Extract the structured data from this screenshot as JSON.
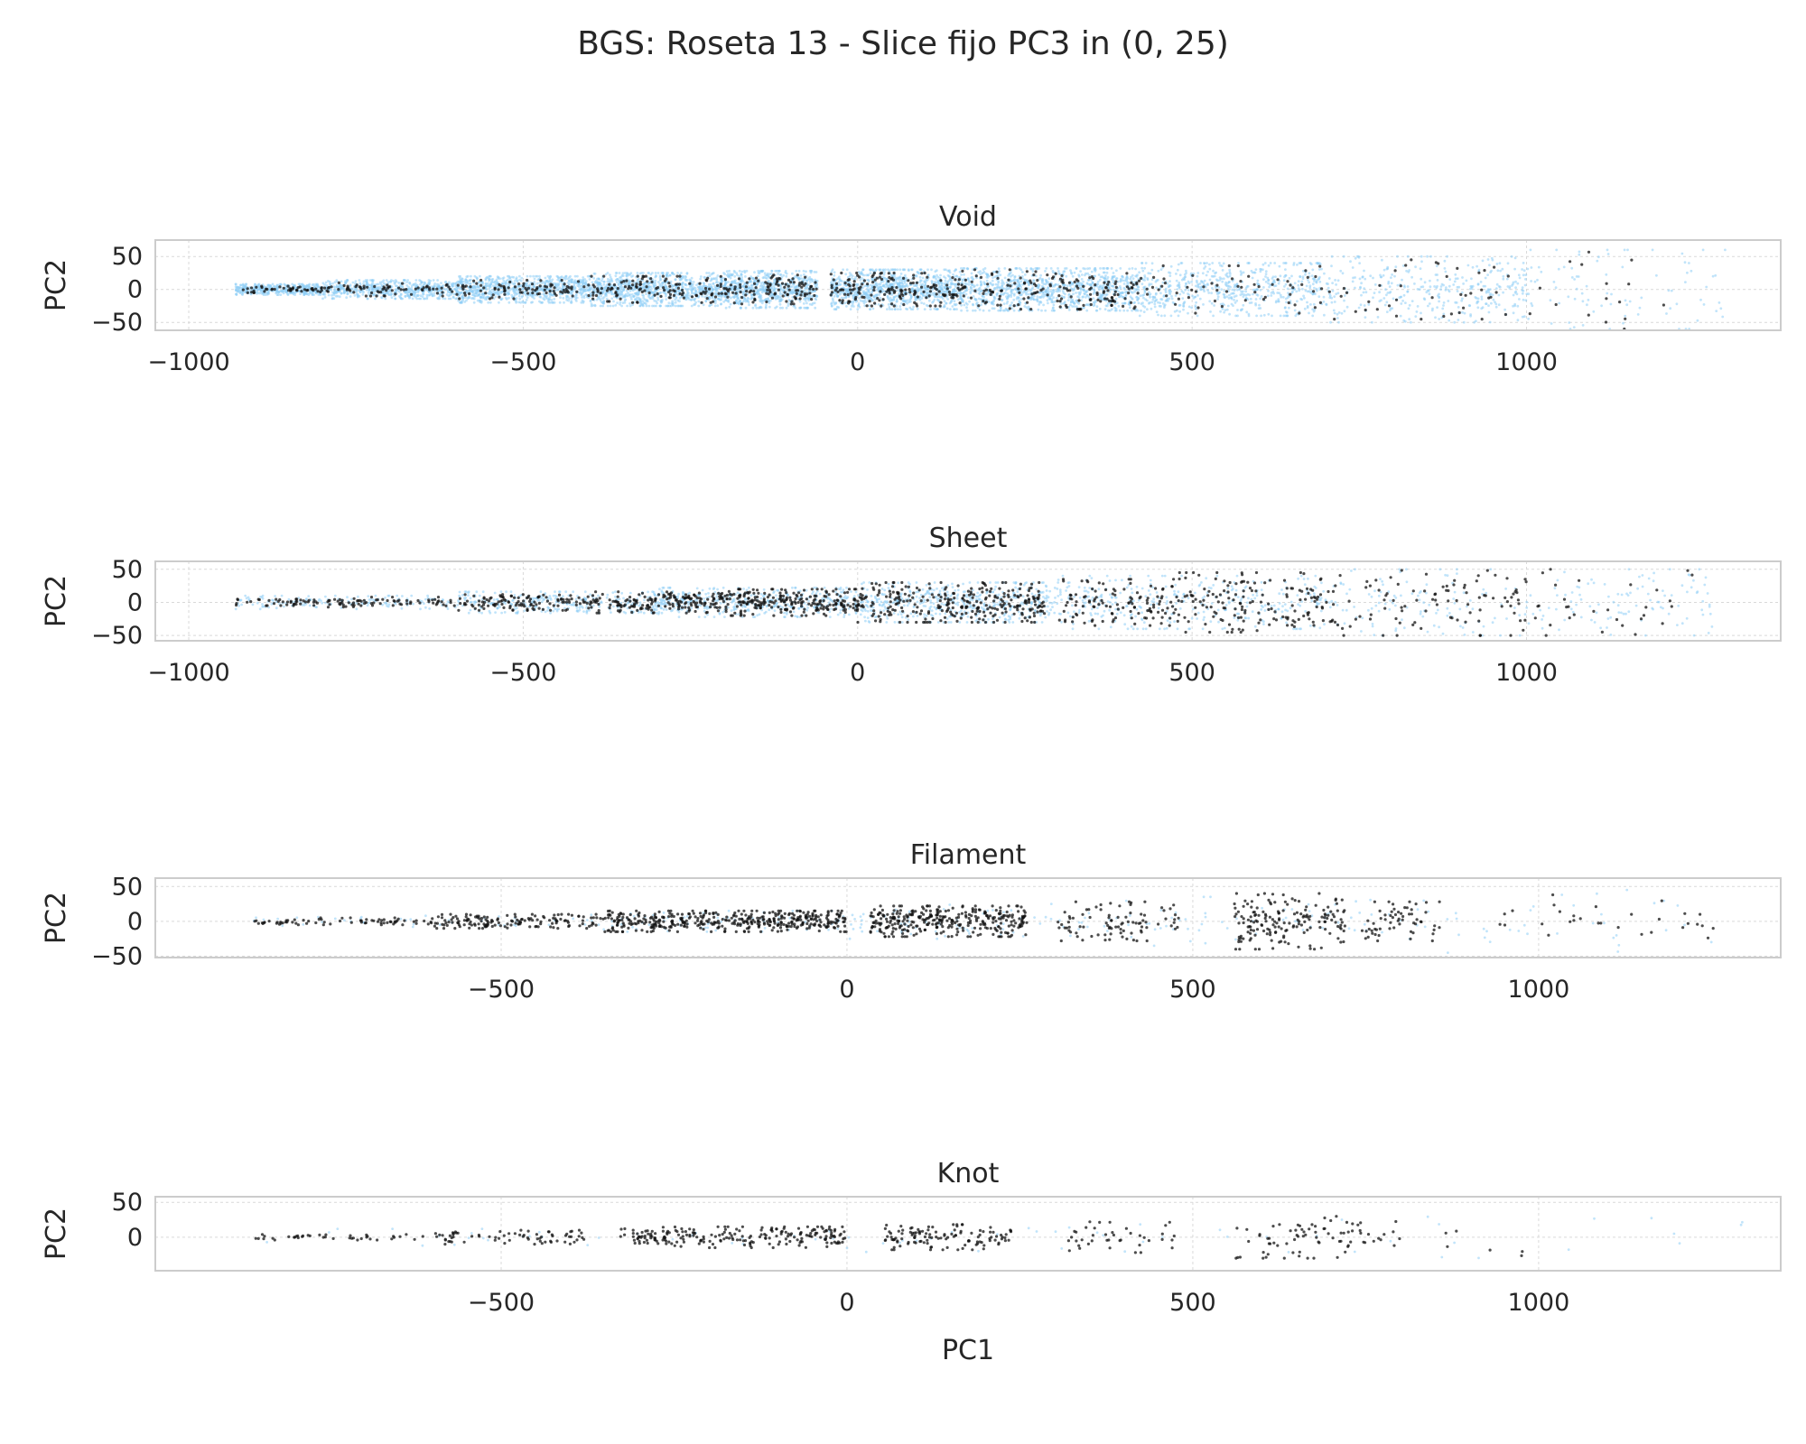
{
  "figure": {
    "suptitle": "BGS: Roseta 13 - Slice fijo PC3 in (0, 25)"
  },
  "colors": {
    "background_points": "#8ecdf5",
    "highlight_points": "#111111",
    "axes_edge": "#cccccc",
    "grid": "#d9d9d9",
    "text": "#262626"
  },
  "chart_data": [
    {
      "type": "scatter",
      "title": "Void",
      "xlabel": "",
      "ylabel": "PC2",
      "xlim": [
        -1050,
        1380
      ],
      "ylim": [
        -62,
        75
      ],
      "xticks": [
        -1000,
        -500,
        0,
        500,
        1000
      ],
      "xtick_labels": [
        "−1000",
        "−500",
        "0",
        "500",
        "1000"
      ],
      "yticks": [
        -50,
        0,
        50
      ],
      "ytick_labels": [
        "−50",
        "0",
        "50"
      ],
      "grid": true,
      "series": [
        {
          "color": "#8ecdf5",
          "role": "background",
          "bands": [
            [
              -930,
              -800,
              8,
              400
            ],
            [
              -800,
              -600,
              14,
              600
            ],
            [
              -600,
              -400,
              20,
              800
            ],
            [
              -400,
              -200,
              25,
              900
            ],
            [
              -200,
              -60,
              28,
              700
            ],
            [
              -40,
              150,
              30,
              900
            ],
            [
              150,
              420,
              32,
              1000
            ],
            [
              420,
              700,
              40,
              600
            ],
            [
              700,
              1000,
              50,
              350
            ],
            [
              1000,
              1300,
              60,
              90
            ]
          ]
        },
        {
          "color": "#111111",
          "role": "highlight",
          "bands": [
            [
              -930,
              -800,
              5,
              45
            ],
            [
              -800,
              -600,
              10,
              70
            ],
            [
              -600,
              -400,
              14,
              90
            ],
            [
              -400,
              -200,
              20,
              120
            ],
            [
              -200,
              -60,
              22,
              110
            ],
            [
              -40,
              150,
              25,
              160
            ],
            [
              150,
              420,
              30,
              170
            ],
            [
              420,
              700,
              36,
              60
            ],
            [
              700,
              1000,
              45,
              40
            ],
            [
              1000,
              1220,
              60,
              16
            ]
          ]
        }
      ]
    },
    {
      "type": "scatter",
      "title": "Sheet",
      "xlabel": "",
      "ylabel": "PC2",
      "xlim": [
        -1050,
        1380
      ],
      "ylim": [
        -58,
        62
      ],
      "xticks": [
        -1000,
        -500,
        0,
        500,
        1000
      ],
      "xtick_labels": [
        "−1000",
        "−500",
        "0",
        "500",
        "1000"
      ],
      "yticks": [
        -50,
        0,
        50
      ],
      "ytick_labels": [
        "−50",
        "0",
        "50"
      ],
      "grid": true,
      "series": [
        {
          "color": "#8ecdf5",
          "role": "background",
          "bands": [
            [
              -930,
              -600,
              10,
              150
            ],
            [
              -600,
              -300,
              16,
              300
            ],
            [
              -300,
              0,
              22,
              450
            ],
            [
              0,
              300,
              30,
              500
            ],
            [
              300,
              700,
              40,
              350
            ],
            [
              700,
              1280,
              50,
              220
            ]
          ]
        },
        {
          "color": "#111111",
          "role": "highlight",
          "bands": [
            [
              -930,
              -800,
              5,
              40
            ],
            [
              -800,
              -600,
              8,
              70
            ],
            [
              -600,
              -400,
              12,
              120
            ],
            [
              -400,
              -200,
              16,
              180
            ],
            [
              -200,
              0,
              20,
              230
            ],
            [
              0,
              280,
              30,
              300
            ],
            [
              300,
              480,
              35,
              120
            ],
            [
              480,
              720,
              45,
              160
            ],
            [
              720,
              1000,
              50,
              90
            ],
            [
              1000,
              1260,
              50,
              30
            ]
          ]
        }
      ]
    },
    {
      "type": "scatter",
      "title": "Filament",
      "xlabel": "",
      "ylabel": "PC2",
      "xlim": [
        -1000,
        1350
      ],
      "ylim": [
        -52,
        62
      ],
      "xticks": [
        -500,
        0,
        500,
        1000
      ],
      "xtick_labels": [
        "−500",
        "0",
        "500",
        "1000"
      ],
      "yticks": [
        -50,
        0,
        50
      ],
      "ytick_labels": [
        "−50",
        "0",
        "50"
      ],
      "grid": true,
      "series": [
        {
          "color": "#8ecdf5",
          "role": "background",
          "bands": [
            [
              -860,
              -400,
              8,
              40
            ],
            [
              -400,
              0,
              15,
              80
            ],
            [
              0,
              400,
              25,
              80
            ],
            [
              400,
              800,
              35,
              60
            ],
            [
              800,
              1260,
              45,
              40
            ]
          ]
        },
        {
          "color": "#111111",
          "role": "highlight",
          "bands": [
            [
              -860,
              -600,
              5,
              70
            ],
            [
              -600,
              -350,
              10,
              150
            ],
            [
              -350,
              0,
              15,
              420
            ],
            [
              30,
              260,
              22,
              330
            ],
            [
              300,
              480,
              28,
              90
            ],
            [
              560,
              720,
              40,
              170
            ],
            [
              740,
              860,
              28,
              60
            ],
            [
              900,
              1260,
              38,
              30
            ]
          ]
        }
      ]
    },
    {
      "type": "scatter",
      "title": "Knot",
      "xlabel": "PC1",
      "ylabel": "PC2",
      "xlim": [
        -1000,
        1350
      ],
      "ylim": [
        -48,
        58
      ],
      "xticks": [
        -500,
        0,
        500,
        1000
      ],
      "xtick_labels": [
        "−500",
        "0",
        "500",
        "1000"
      ],
      "yticks": [
        0,
        50
      ],
      "ytick_labels": [
        "0",
        "50"
      ],
      "grid": true,
      "series": [
        {
          "color": "#8ecdf5",
          "role": "background",
          "bands": [
            [
              -860,
              0,
              12,
              30
            ],
            [
              0,
              800,
              25,
              30
            ],
            [
              800,
              1300,
              40,
              12
            ]
          ]
        },
        {
          "color": "#111111",
          "role": "highlight",
          "bands": [
            [
              -860,
              -600,
              4,
              40
            ],
            [
              -600,
              -380,
              10,
              70
            ],
            [
              -330,
              0,
              15,
              220
            ],
            [
              50,
              240,
              18,
              120
            ],
            [
              320,
              480,
              22,
              40
            ],
            [
              560,
              800,
              30,
              80
            ],
            [
              850,
              1150,
              30,
              6
            ]
          ]
        }
      ]
    }
  ]
}
